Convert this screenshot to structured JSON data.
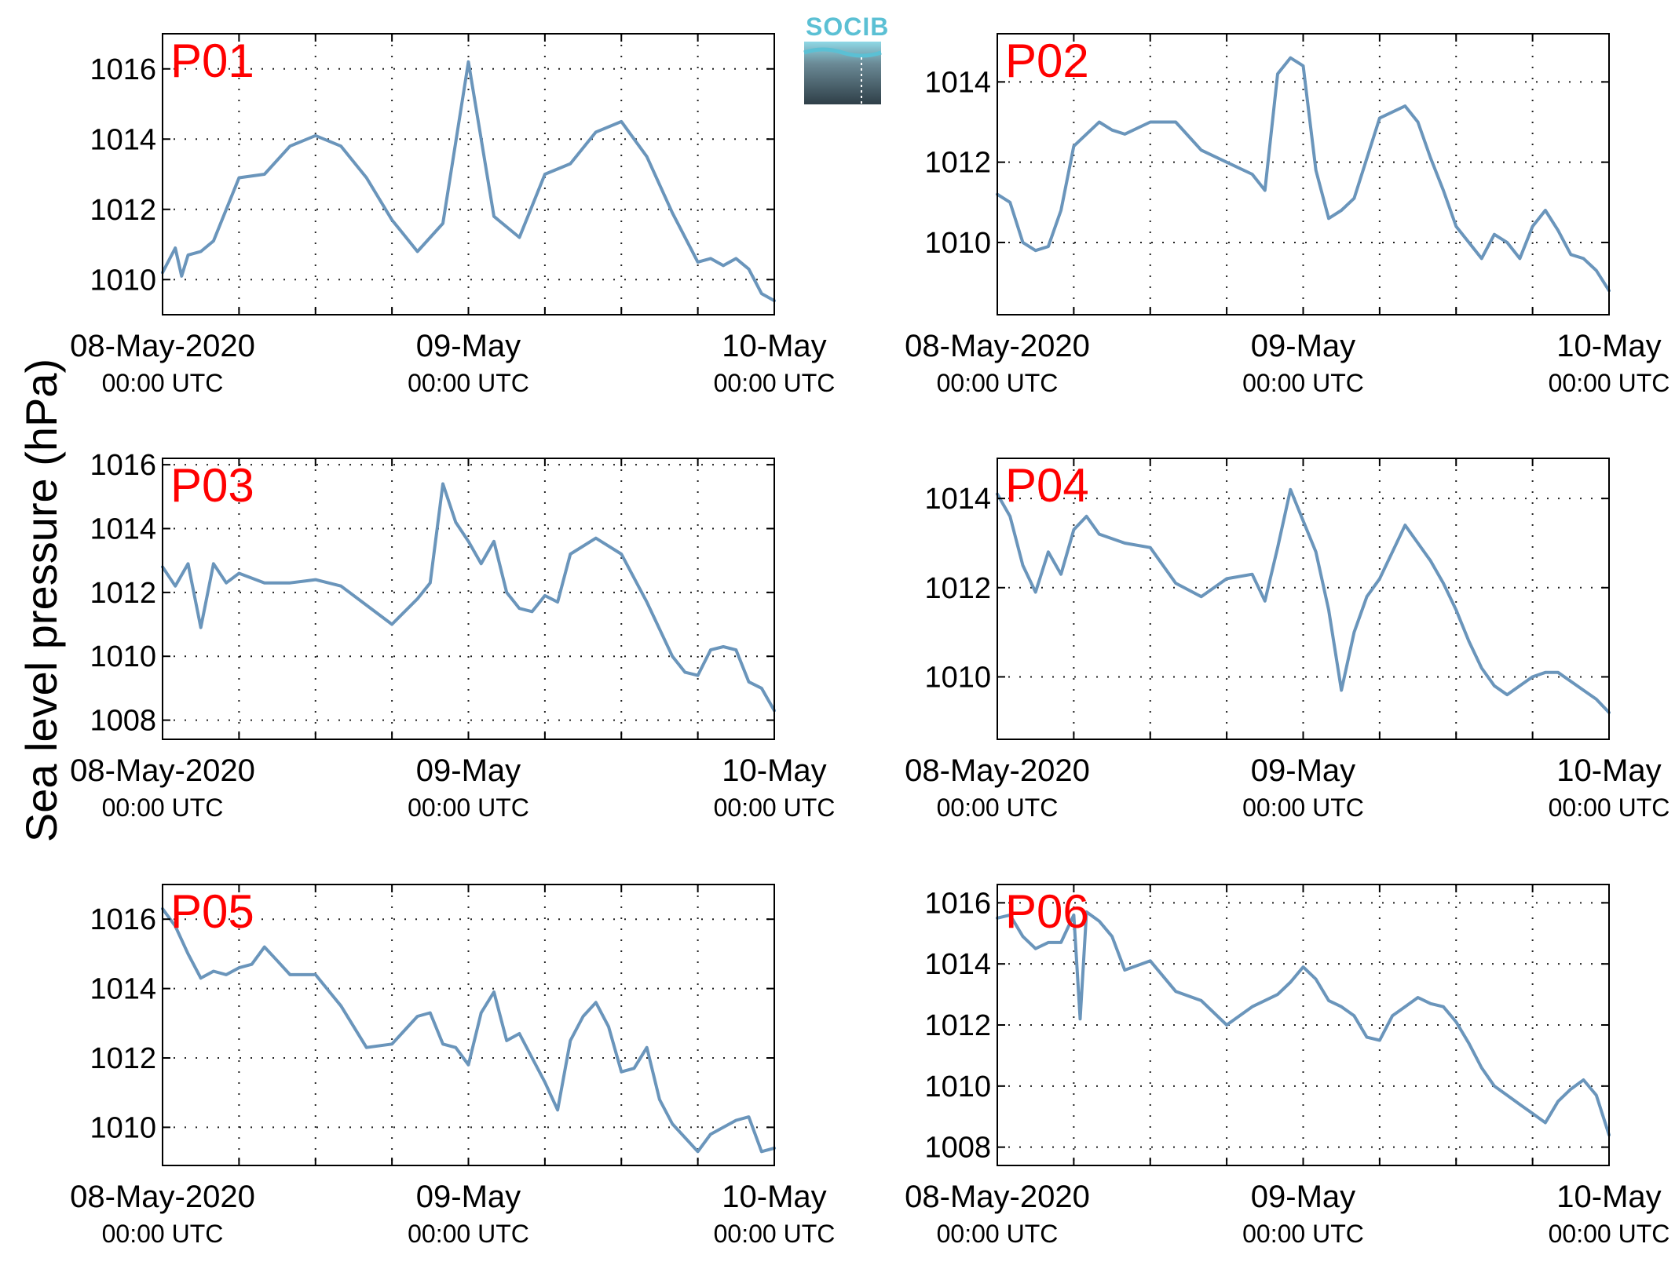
{
  "figure": {
    "ylabel": "Sea level pressure (hPa)",
    "logo_text": "SOCIB"
  },
  "colors": {
    "line": "#6a95bb",
    "panel_title": "#ff0000",
    "grid": "#222222",
    "logo_top": "#5bc0d4",
    "logo_bottom": "#2f3f48"
  },
  "chart_data": [
    {
      "type": "line",
      "title": "P01",
      "ylim": [
        1009,
        1017
      ],
      "yticks": [
        1010,
        1012,
        1014,
        1016
      ],
      "xticks": [
        {
          "main": "08-May-2020",
          "sub": "00:00 UTC"
        },
        {
          "main": "09-May",
          "sub": "00:00 UTC"
        },
        {
          "main": "10-May",
          "sub": "00:00 UTC"
        }
      ],
      "grid": true,
      "x_hours": [
        0,
        1,
        1.5,
        2,
        3,
        4,
        6,
        8,
        10,
        12,
        14,
        16,
        18,
        20,
        22,
        24,
        26,
        28,
        30,
        32,
        34,
        36,
        38,
        40,
        42,
        43,
        44,
        45,
        46,
        47,
        48
      ],
      "values": [
        1010.2,
        1010.9,
        1010.1,
        1010.7,
        1010.8,
        1011.1,
        1012.9,
        1013.0,
        1013.8,
        1014.1,
        1013.8,
        1012.9,
        1011.7,
        1010.8,
        1011.6,
        1016.2,
        1011.8,
        1011.2,
        1013.0,
        1013.3,
        1014.2,
        1014.5,
        1013.5,
        1011.9,
        1010.5,
        1010.6,
        1010.4,
        1010.6,
        1010.3,
        1009.6,
        1009.4
      ]
    },
    {
      "type": "line",
      "title": "P02",
      "ylim": [
        1008.2,
        1015.2
      ],
      "yticks": [
        1010,
        1012,
        1014
      ],
      "xticks": [
        {
          "main": "08-May-2020",
          "sub": "00:00 UTC"
        },
        {
          "main": "09-May",
          "sub": "00:00 UTC"
        },
        {
          "main": "10-May",
          "sub": "00:00 UTC"
        }
      ],
      "grid": true,
      "x_hours": [
        0,
        1,
        2,
        3,
        4,
        5,
        6,
        8,
        9,
        10,
        12,
        14,
        16,
        18,
        20,
        21,
        22,
        23,
        24,
        25,
        26,
        27,
        28,
        30,
        32,
        33,
        34,
        35,
        36,
        37,
        38,
        39,
        40,
        41,
        42,
        43,
        44,
        45,
        46,
        47,
        48
      ],
      "values": [
        1011.2,
        1011.0,
        1010.0,
        1009.8,
        1009.9,
        1010.8,
        1012.4,
        1013.0,
        1012.8,
        1012.7,
        1013.0,
        1013.0,
        1012.3,
        1012.0,
        1011.7,
        1011.3,
        1014.2,
        1014.6,
        1014.4,
        1011.8,
        1010.6,
        1010.8,
        1011.1,
        1013.1,
        1013.4,
        1013.0,
        1012.1,
        1011.3,
        1010.4,
        1010.0,
        1009.6,
        1010.2,
        1010.0,
        1009.6,
        1010.4,
        1010.8,
        1010.3,
        1009.7,
        1009.6,
        1009.3,
        1008.8
      ]
    },
    {
      "type": "line",
      "title": "P03",
      "ylim": [
        1007.4,
        1016.2
      ],
      "yticks": [
        1008,
        1010,
        1012,
        1014,
        1016
      ],
      "xticks": [
        {
          "main": "08-May-2020",
          "sub": "00:00 UTC"
        },
        {
          "main": "09-May",
          "sub": "00:00 UTC"
        },
        {
          "main": "10-May",
          "sub": "00:00 UTC"
        }
      ],
      "grid": true,
      "x_hours": [
        0,
        1,
        2,
        3,
        4,
        5,
        6,
        8,
        10,
        12,
        14,
        16,
        18,
        20,
        21,
        22,
        23,
        24,
        25,
        26,
        27,
        28,
        29,
        30,
        31,
        32,
        34,
        36,
        38,
        40,
        41,
        42,
        43,
        44,
        45,
        46,
        47,
        48
      ],
      "values": [
        1012.8,
        1012.2,
        1012.9,
        1010.9,
        1012.9,
        1012.3,
        1012.6,
        1012.3,
        1012.3,
        1012.4,
        1012.2,
        1011.6,
        1011.0,
        1011.8,
        1012.3,
        1015.4,
        1014.2,
        1013.6,
        1012.9,
        1013.6,
        1012.0,
        1011.5,
        1011.4,
        1011.9,
        1011.7,
        1013.2,
        1013.7,
        1013.2,
        1011.7,
        1010.0,
        1009.5,
        1009.4,
        1010.2,
        1010.3,
        1010.2,
        1009.2,
        1009.0,
        1008.3
      ]
    },
    {
      "type": "line",
      "title": "P04",
      "ylim": [
        1008.6,
        1014.9
      ],
      "yticks": [
        1010,
        1012,
        1014
      ],
      "xticks": [
        {
          "main": "08-May-2020",
          "sub": "00:00 UTC"
        },
        {
          "main": "09-May",
          "sub": "00:00 UTC"
        },
        {
          "main": "10-May",
          "sub": "00:00 UTC"
        }
      ],
      "grid": true,
      "x_hours": [
        0,
        1,
        2,
        3,
        4,
        5,
        6,
        7,
        8,
        10,
        12,
        14,
        16,
        18,
        20,
        21,
        22,
        23,
        24,
        25,
        26,
        27,
        28,
        29,
        30,
        31,
        32,
        33,
        34,
        35,
        36,
        37,
        38,
        39,
        40,
        41,
        42,
        43,
        44,
        45,
        46,
        47,
        48
      ],
      "values": [
        1014.1,
        1013.6,
        1012.5,
        1011.9,
        1012.8,
        1012.3,
        1013.3,
        1013.6,
        1013.2,
        1013.0,
        1012.9,
        1012.1,
        1011.8,
        1012.2,
        1012.3,
        1011.7,
        1012.9,
        1014.2,
        1013.5,
        1012.8,
        1011.5,
        1009.7,
        1011.0,
        1011.8,
        1012.2,
        1012.8,
        1013.4,
        1013.0,
        1012.6,
        1012.1,
        1011.5,
        1010.8,
        1010.2,
        1009.8,
        1009.6,
        1009.8,
        1010.0,
        1010.1,
        1010.1,
        1009.9,
        1009.7,
        1009.5,
        1009.2
      ]
    },
    {
      "type": "line",
      "title": "P05",
      "ylim": [
        1008.9,
        1017
      ],
      "yticks": [
        1010,
        1012,
        1014,
        1016
      ],
      "xticks": [
        {
          "main": "08-May-2020",
          "sub": "00:00 UTC"
        },
        {
          "main": "09-May",
          "sub": "00:00 UTC"
        },
        {
          "main": "10-May",
          "sub": "00:00 UTC"
        }
      ],
      "grid": true,
      "x_hours": [
        0,
        1,
        2,
        3,
        4,
        5,
        6,
        7,
        8,
        9,
        10,
        12,
        14,
        16,
        18,
        20,
        21,
        22,
        23,
        24,
        25,
        26,
        27,
        28,
        29,
        30,
        31,
        32,
        33,
        34,
        35,
        36,
        37,
        38,
        39,
        40,
        41,
        42,
        43,
        44,
        45,
        46,
        47,
        48
      ],
      "values": [
        1016.3,
        1015.8,
        1015.0,
        1014.3,
        1014.5,
        1014.4,
        1014.6,
        1014.7,
        1015.2,
        1014.8,
        1014.4,
        1014.4,
        1013.5,
        1012.3,
        1012.4,
        1013.2,
        1013.3,
        1012.4,
        1012.3,
        1011.8,
        1013.3,
        1013.9,
        1012.5,
        1012.7,
        1012.0,
        1011.3,
        1010.5,
        1012.5,
        1013.2,
        1013.6,
        1012.9,
        1011.6,
        1011.7,
        1012.3,
        1010.8,
        1010.1,
        1009.7,
        1009.3,
        1009.8,
        1010.0,
        1010.2,
        1010.3,
        1009.3,
        1009.4
      ]
    },
    {
      "type": "line",
      "title": "P06",
      "ylim": [
        1007.4,
        1016.6
      ],
      "yticks": [
        1008,
        1010,
        1012,
        1014,
        1016
      ],
      "xticks": [
        {
          "main": "08-May-2020",
          "sub": "00:00 UTC"
        },
        {
          "main": "09-May",
          "sub": "00:00 UTC"
        },
        {
          "main": "10-May",
          "sub": "00:00 UTC"
        }
      ],
      "grid": true,
      "x_hours": [
        0,
        1,
        2,
        3,
        4,
        5,
        6,
        6.5,
        7,
        8,
        9,
        10,
        12,
        14,
        16,
        18,
        20,
        22,
        23,
        24,
        25,
        26,
        27,
        28,
        29,
        30,
        31,
        32,
        33,
        34,
        35,
        36,
        37,
        38,
        39,
        40,
        41,
        42,
        43,
        44,
        45,
        46,
        47,
        48
      ],
      "values": [
        1015.5,
        1015.6,
        1014.9,
        1014.5,
        1014.7,
        1014.7,
        1015.6,
        1012.2,
        1015.7,
        1015.4,
        1014.9,
        1013.8,
        1014.1,
        1013.1,
        1012.8,
        1012.0,
        1012.6,
        1013.0,
        1013.4,
        1013.9,
        1013.5,
        1012.8,
        1012.6,
        1012.3,
        1011.6,
        1011.5,
        1012.3,
        1012.6,
        1012.9,
        1012.7,
        1012.6,
        1012.1,
        1011.4,
        1010.6,
        1010.0,
        1009.7,
        1009.4,
        1009.1,
        1008.8,
        1009.5,
        1009.9,
        1010.2,
        1009.7,
        1008.4
      ]
    }
  ]
}
